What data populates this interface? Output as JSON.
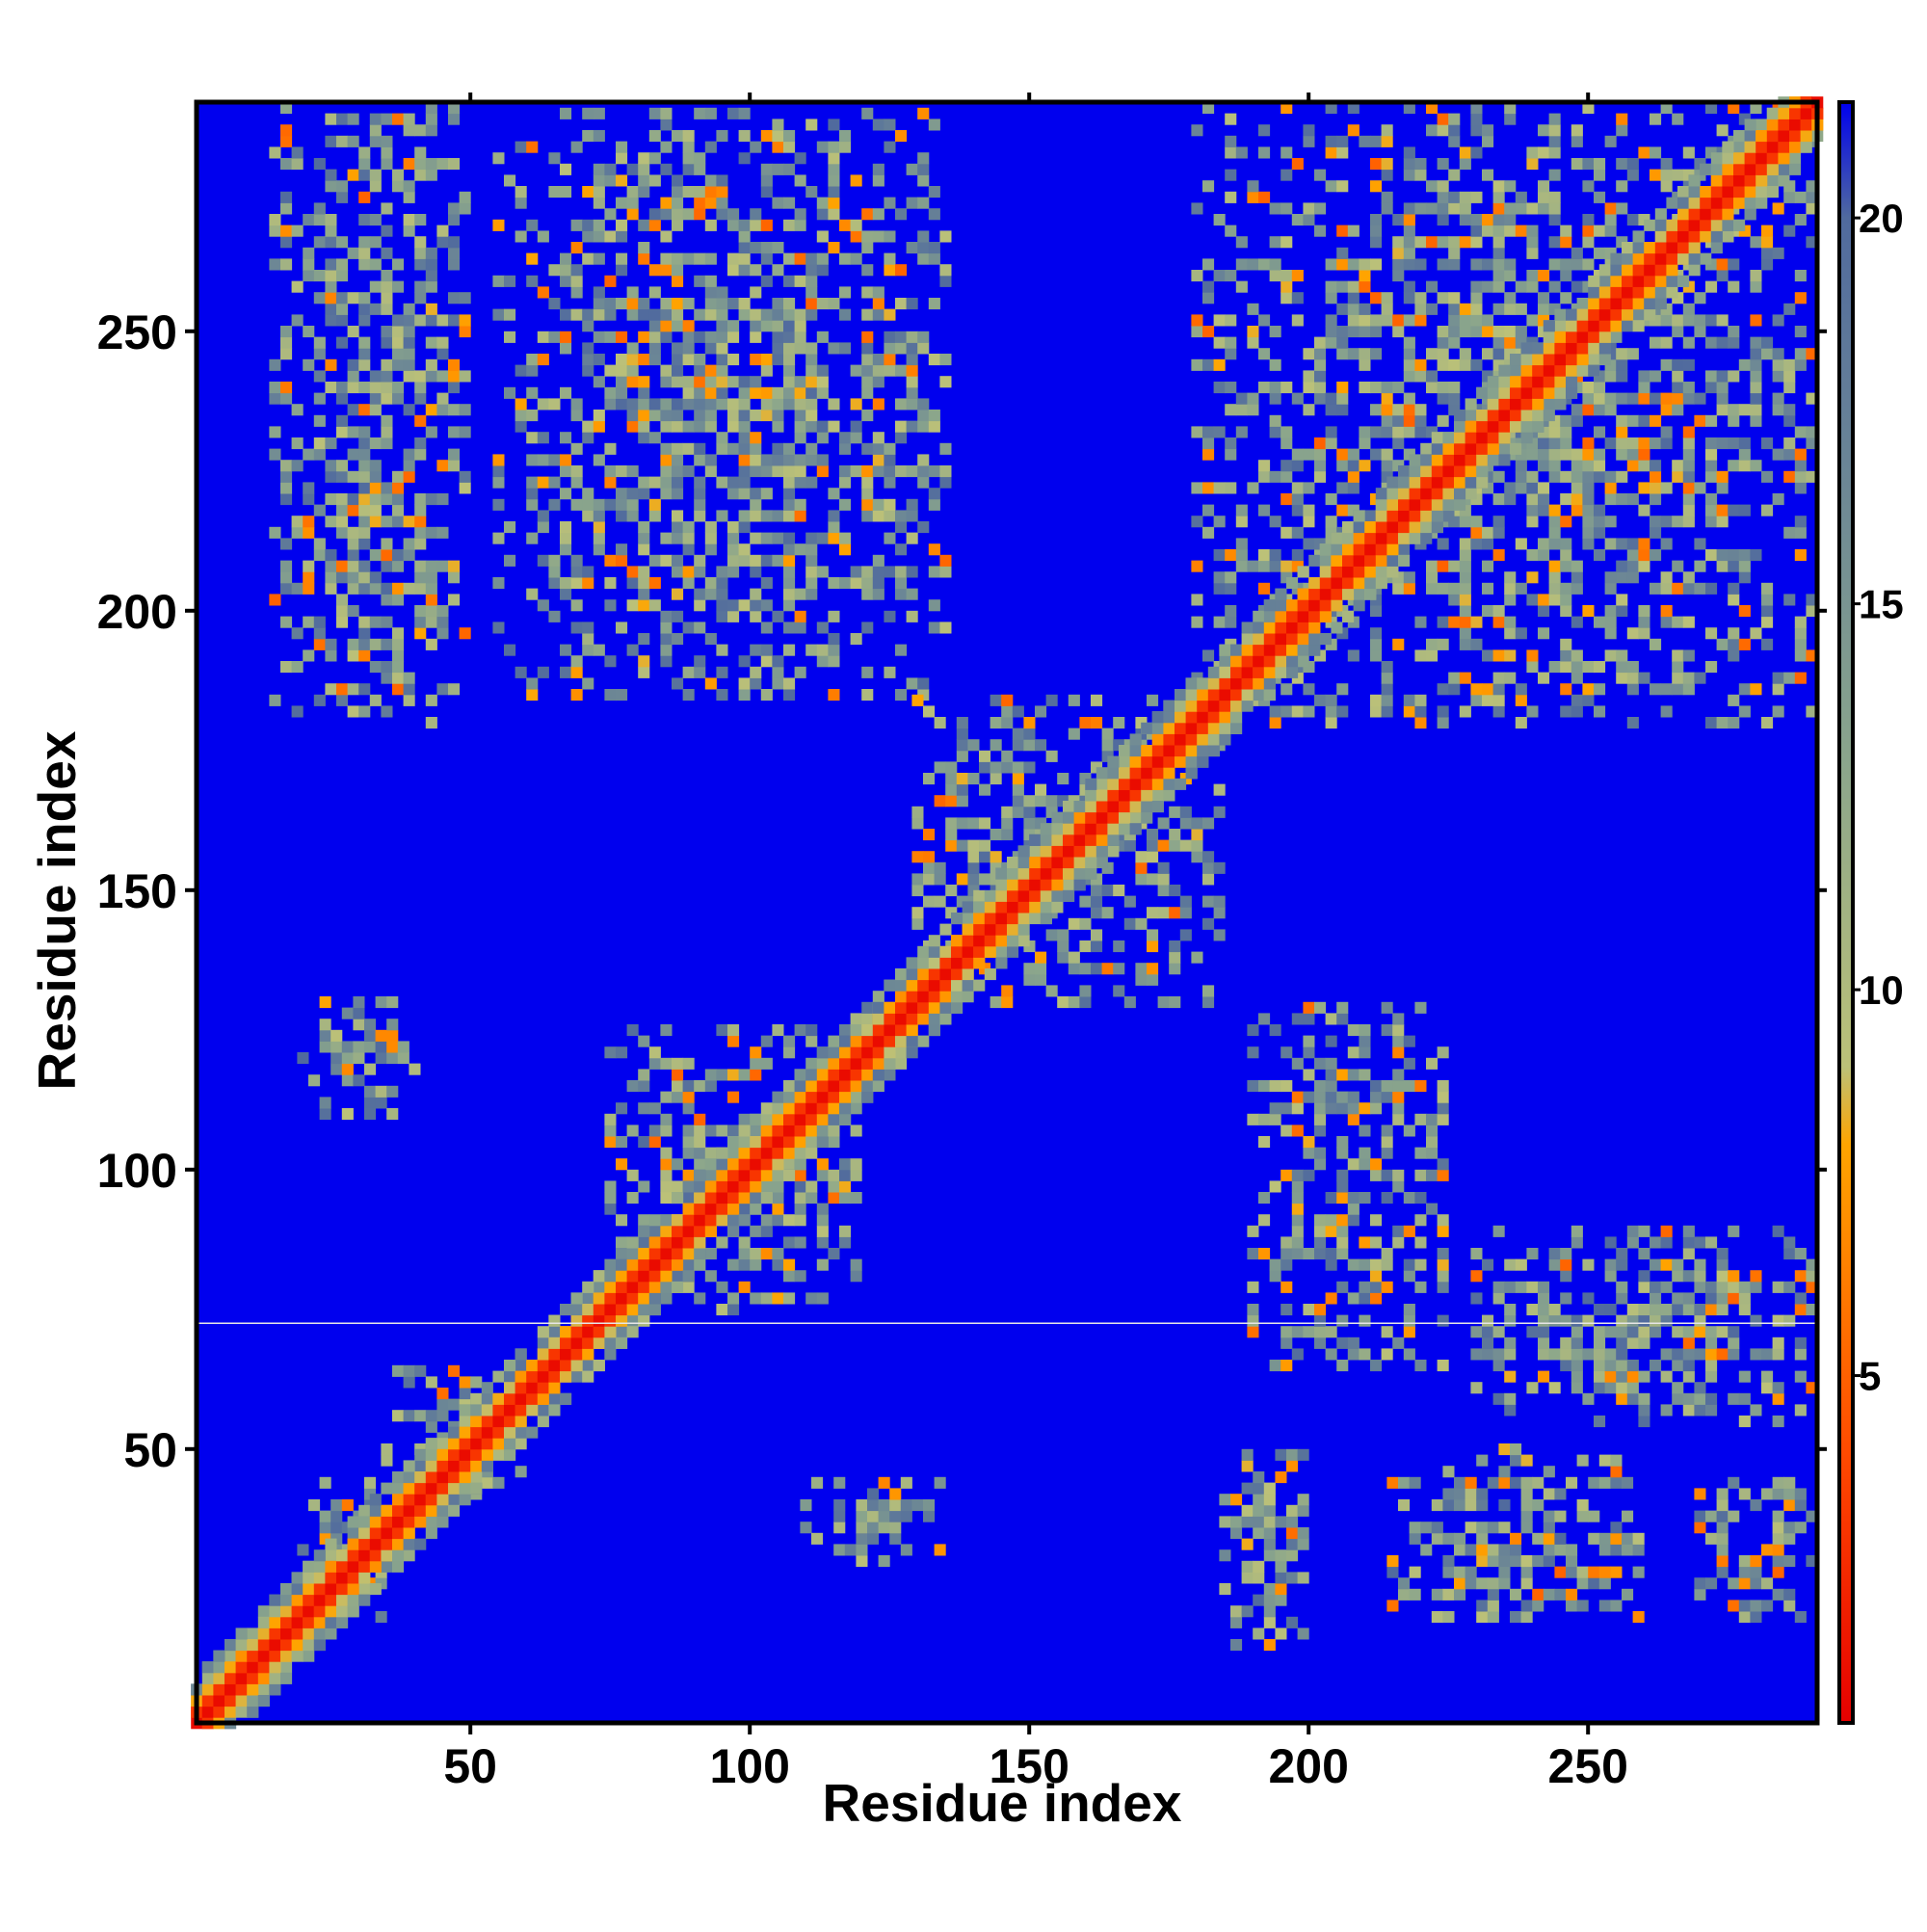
{
  "chart_data": {
    "type": "heatmap",
    "title": "",
    "xlabel": "Residue index",
    "ylabel": "Residue index",
    "xlim": [
      1,
      291
    ],
    "ylim": [
      1,
      291
    ],
    "x_ticks": [
      50,
      100,
      150,
      200,
      250
    ],
    "y_ticks": [
      50,
      100,
      150,
      200,
      250
    ],
    "colorbar": {
      "range": [
        0.5,
        21.5
      ],
      "ticks": [
        5,
        10,
        15,
        20
      ],
      "stops": [
        {
          "value": 0.5,
          "color": "#e60000"
        },
        {
          "value": 4.0,
          "color": "#ff4a00"
        },
        {
          "value": 8.0,
          "color": "#ffa500"
        },
        {
          "value": 9.0,
          "color": "#bcc178"
        },
        {
          "value": 13.0,
          "color": "#8aa58c"
        },
        {
          "value": 20.0,
          "color": "#506a9e"
        },
        {
          "value": 21.5,
          "color": "#0000ee"
        }
      ]
    },
    "background_value": 21.5,
    "grid": false,
    "diagonal": {
      "from": 1,
      "to": 291,
      "value": 1
    },
    "contact_regions": [
      {
        "x": [
          20,
          35
        ],
        "y": [
          20,
          45
        ],
        "note": "cross"
      },
      {
        "x": [
          35,
          60
        ],
        "y": [
          40,
          65
        ]
      },
      {
        "x": [
          75,
          120
        ],
        "y": [
          75,
          125
        ]
      },
      {
        "x": [
          20,
          40
        ],
        "y": [
          110,
          130
        ]
      },
      {
        "x": [
          110,
          135
        ],
        "y": [
          30,
          45
        ]
      },
      {
        "x": [
          190,
          225
        ],
        "y": [
          65,
          130
        ]
      },
      {
        "x": [
          230,
          290
        ],
        "y": [
          55,
          90
        ]
      },
      {
        "x": [
          185,
          200
        ],
        "y": [
          15,
          50
        ]
      },
      {
        "x": [
          215,
          260
        ],
        "y": [
          20,
          50
        ]
      },
      {
        "x": [
          270,
          290
        ],
        "y": [
          20,
          45
        ]
      },
      {
        "x": [
          15,
          50
        ],
        "y": [
          180,
          290
        ]
      },
      {
        "x": [
          55,
          135
        ],
        "y": [
          185,
          290
        ]
      },
      {
        "x": [
          180,
          290
        ],
        "y": [
          180,
          290
        ]
      },
      {
        "x": [
          130,
          185
        ],
        "y": [
          130,
          185
        ]
      }
    ]
  }
}
